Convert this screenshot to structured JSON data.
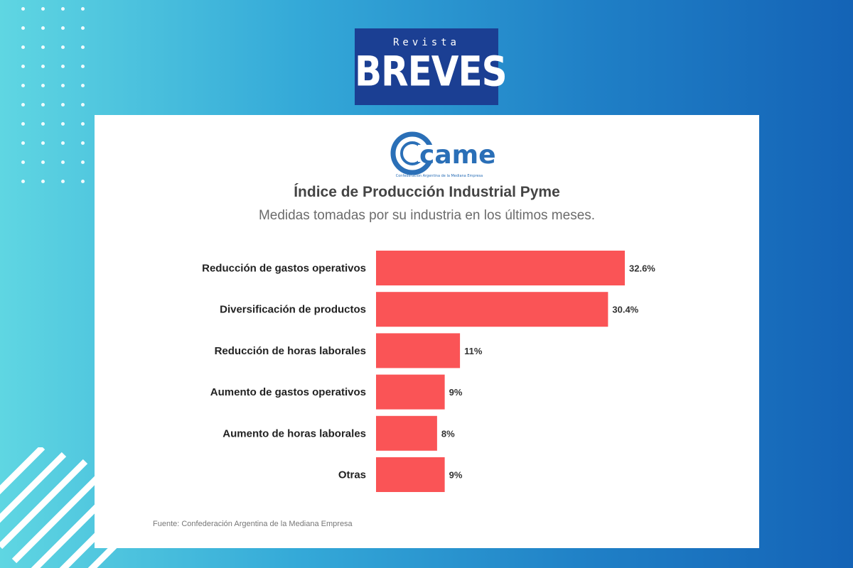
{
  "logo": {
    "top_text": "Revista",
    "main_text": "BREVES",
    "colors": {
      "box": "#1b3f93",
      "text": "#ffffff"
    }
  },
  "came_logo": {
    "icon": "came-logo-icon",
    "text": "came",
    "subtext": "Confederación Argentina de la Mediana Empresa",
    "color": "#2a6fb7"
  },
  "chart_data": {
    "type": "bar",
    "orientation": "horizontal",
    "title": "Índice de Producción Industrial Pyme",
    "subtitle": "Medidas tomadas por su industria en los últimos meses.",
    "categories": [
      "Reducción de gastos operativos",
      "Diversificación de productos",
      "Reducción de horas laborales",
      "Aumento de gastos operativos",
      "Aumento de horas laborales",
      "Otras"
    ],
    "values": [
      32.6,
      30.4,
      11,
      9,
      8,
      9
    ],
    "value_labels": [
      "32.6%",
      "30.4%",
      "11%",
      "9%",
      "8%",
      "9%"
    ],
    "bar_color": "#fa5456",
    "xlabel": "",
    "ylabel": "",
    "grid": false,
    "legend": "none"
  },
  "source": "Fuente: Confederación Argentina de la Mediana Empresa"
}
